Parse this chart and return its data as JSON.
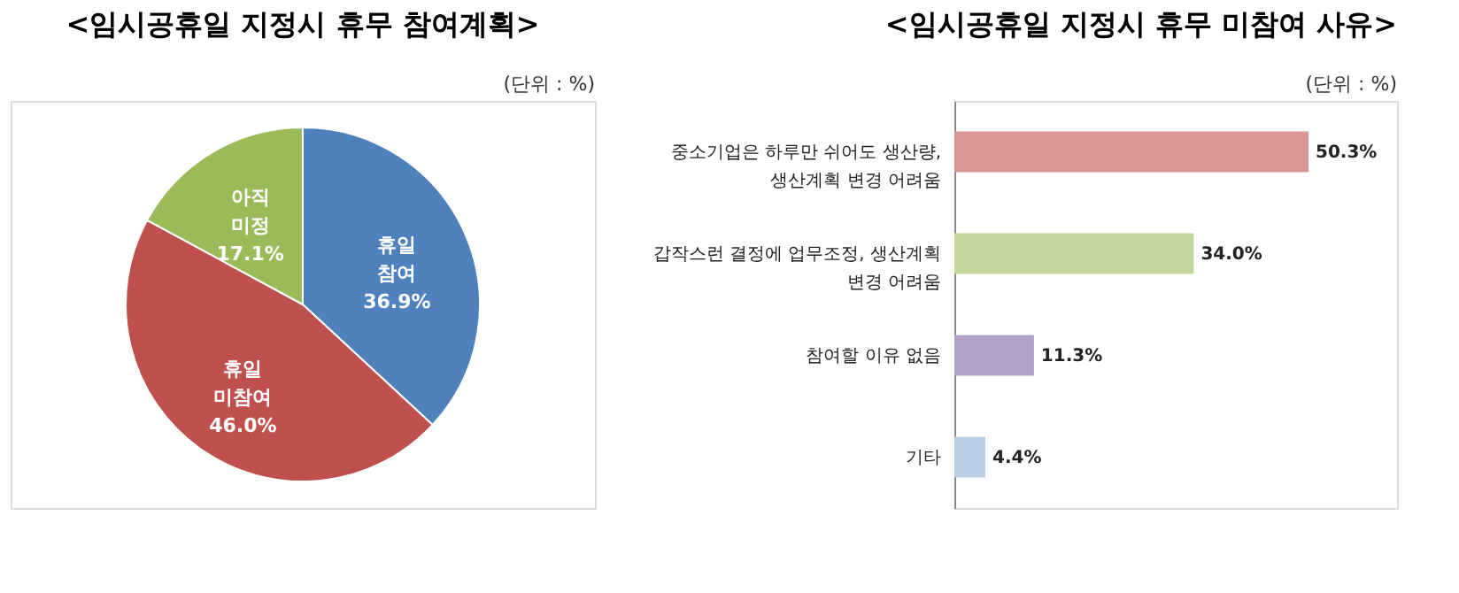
{
  "chart_data": [
    {
      "type": "pie",
      "title": "<임시공휴일 지정시 휴무 참여계획>",
      "annotations": [
        "(단위 : %)"
      ],
      "categories": [
        "휴일 참여",
        "휴일 미참여",
        "아직 미정"
      ],
      "values": [
        36.9,
        46.0,
        17.1
      ],
      "colors": [
        "#4f81bd",
        "#c0504d",
        "#9bbb59"
      ],
      "value_labels": [
        "36.9%",
        "46.0%",
        "17.1%"
      ],
      "legend": false
    },
    {
      "type": "bar",
      "orientation": "horizontal",
      "title": "<임시공휴일 지정시 휴무 미참여 사유>",
      "annotations": [
        "(단위 : %)"
      ],
      "categories": [
        "중소기업은 하루만 쉬어도 생산량, 생산계획 변경 어려움",
        "갑작스런 결정에 업무조정, 생산계획 변경 어려움",
        "참여할 이유 없음",
        "기타"
      ],
      "values": [
        50.3,
        34.0,
        11.3,
        4.4
      ],
      "colors": [
        "#d99694",
        "#c3d69b",
        "#b3a2c7",
        "#b9cde5"
      ],
      "value_labels": [
        "50.3%",
        "34.0%",
        "11.3%",
        "4.4%"
      ],
      "legend": false
    }
  ]
}
